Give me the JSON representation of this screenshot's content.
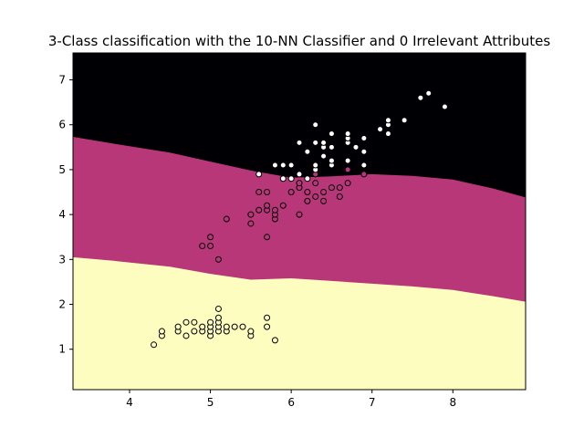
{
  "chart_data": {
    "type": "scatter",
    "title": "3-Class classification with the 10-NN Classifier and 0 Irrelevant Attributes",
    "xlabel": "",
    "ylabel": "",
    "xlim": [
      3.3,
      8.9
    ],
    "ylim": [
      0.1,
      7.6
    ],
    "xticks": [
      4,
      5,
      6,
      7,
      8
    ],
    "yticks": [
      1,
      2,
      3,
      4,
      5,
      6,
      7
    ],
    "grid": false,
    "regions": [
      {
        "class": "2",
        "color": "#000004",
        "description": "upper region"
      },
      {
        "class": "1",
        "color": "#b73779",
        "boundary_upper": {
          "x": [
            3.3,
            3.8,
            4.5,
            5.0,
            5.5,
            6.0,
            6.5,
            7.0,
            7.5,
            8.0,
            8.5,
            8.9
          ],
          "y": [
            5.73,
            5.58,
            5.38,
            5.18,
            4.98,
            4.82,
            4.85,
            4.9,
            4.86,
            4.78,
            4.58,
            4.38
          ]
        }
      },
      {
        "class": "0",
        "color": "#fcfdbf",
        "boundary_upper": {
          "x": [
            3.3,
            3.8,
            4.5,
            5.0,
            5.5,
            6.0,
            6.5,
            7.0,
            7.5,
            8.0,
            8.5,
            8.9
          ],
          "y": [
            3.05,
            2.97,
            2.84,
            2.68,
            2.55,
            2.58,
            2.52,
            2.46,
            2.4,
            2.32,
            2.18,
            2.06
          ]
        }
      }
    ],
    "series": [
      {
        "class": "0",
        "fill": "#fcfdbf",
        "points": [
          [
            4.3,
            1.1
          ],
          [
            4.4,
            1.3
          ],
          [
            4.4,
            1.4
          ],
          [
            4.6,
            1.4
          ],
          [
            4.6,
            1.5
          ],
          [
            4.7,
            1.3
          ],
          [
            4.7,
            1.6
          ],
          [
            4.8,
            1.4
          ],
          [
            4.8,
            1.6
          ],
          [
            4.9,
            1.4
          ],
          [
            4.9,
            1.5
          ],
          [
            5.0,
            1.3
          ],
          [
            5.0,
            1.4
          ],
          [
            5.0,
            1.5
          ],
          [
            5.0,
            1.6
          ],
          [
            5.1,
            1.4
          ],
          [
            5.1,
            1.5
          ],
          [
            5.1,
            1.6
          ],
          [
            5.1,
            1.7
          ],
          [
            5.1,
            1.9
          ],
          [
            5.2,
            1.4
          ],
          [
            5.2,
            1.5
          ],
          [
            5.3,
            1.5
          ],
          [
            5.4,
            1.5
          ],
          [
            5.5,
            1.3
          ],
          [
            5.5,
            1.4
          ],
          [
            5.7,
            1.5
          ],
          [
            5.7,
            1.7
          ],
          [
            5.8,
            1.2
          ]
        ]
      },
      {
        "class": "1",
        "fill": "#b73779",
        "points": [
          [
            4.9,
            3.3
          ],
          [
            5.0,
            3.3
          ],
          [
            5.0,
            3.5
          ],
          [
            5.1,
            3.0
          ],
          [
            5.2,
            3.9
          ],
          [
            5.5,
            3.8
          ],
          [
            5.5,
            4.0
          ],
          [
            5.6,
            4.1
          ],
          [
            5.6,
            4.5
          ],
          [
            5.7,
            3.5
          ],
          [
            5.7,
            4.1
          ],
          [
            5.7,
            4.2
          ],
          [
            5.7,
            4.5
          ],
          [
            5.8,
            3.9
          ],
          [
            5.8,
            4.0
          ],
          [
            5.8,
            4.1
          ],
          [
            5.9,
            4.2
          ],
          [
            6.0,
            4.5
          ],
          [
            6.1,
            4.0
          ],
          [
            6.1,
            4.6
          ],
          [
            6.1,
            4.7
          ],
          [
            6.2,
            4.3
          ],
          [
            6.2,
            4.5
          ],
          [
            6.3,
            4.4
          ],
          [
            6.3,
            4.7
          ],
          [
            6.3,
            4.9
          ],
          [
            6.4,
            4.3
          ],
          [
            6.4,
            4.5
          ],
          [
            6.5,
            4.6
          ],
          [
            6.6,
            4.4
          ],
          [
            6.6,
            4.6
          ],
          [
            6.7,
            4.7
          ],
          [
            6.7,
            5.0
          ],
          [
            6.9,
            4.9
          ]
        ]
      },
      {
        "class": "2",
        "fill": "#ffffff",
        "points": [
          [
            5.6,
            4.9
          ],
          [
            5.8,
            5.1
          ],
          [
            5.9,
            4.8
          ],
          [
            5.9,
            5.1
          ],
          [
            6.0,
            4.8
          ],
          [
            6.0,
            5.1
          ],
          [
            6.1,
            4.9
          ],
          [
            6.1,
            5.6
          ],
          [
            6.2,
            4.8
          ],
          [
            6.2,
            5.4
          ],
          [
            6.3,
            5.0
          ],
          [
            6.3,
            5.1
          ],
          [
            6.3,
            5.6
          ],
          [
            6.3,
            6.0
          ],
          [
            6.4,
            5.3
          ],
          [
            6.4,
            5.5
          ],
          [
            6.4,
            5.6
          ],
          [
            6.5,
            5.1
          ],
          [
            6.5,
            5.2
          ],
          [
            6.5,
            5.5
          ],
          [
            6.5,
            5.8
          ],
          [
            6.7,
            5.2
          ],
          [
            6.7,
            5.6
          ],
          [
            6.7,
            5.7
          ],
          [
            6.7,
            5.8
          ],
          [
            6.8,
            5.5
          ],
          [
            6.9,
            5.1
          ],
          [
            6.9,
            5.4
          ],
          [
            6.9,
            5.7
          ],
          [
            7.1,
            5.9
          ],
          [
            7.2,
            5.8
          ],
          [
            7.2,
            6.0
          ],
          [
            7.2,
            6.1
          ],
          [
            7.4,
            6.1
          ],
          [
            7.6,
            6.6
          ],
          [
            7.7,
            6.7
          ],
          [
            7.9,
            6.4
          ]
        ]
      }
    ]
  }
}
